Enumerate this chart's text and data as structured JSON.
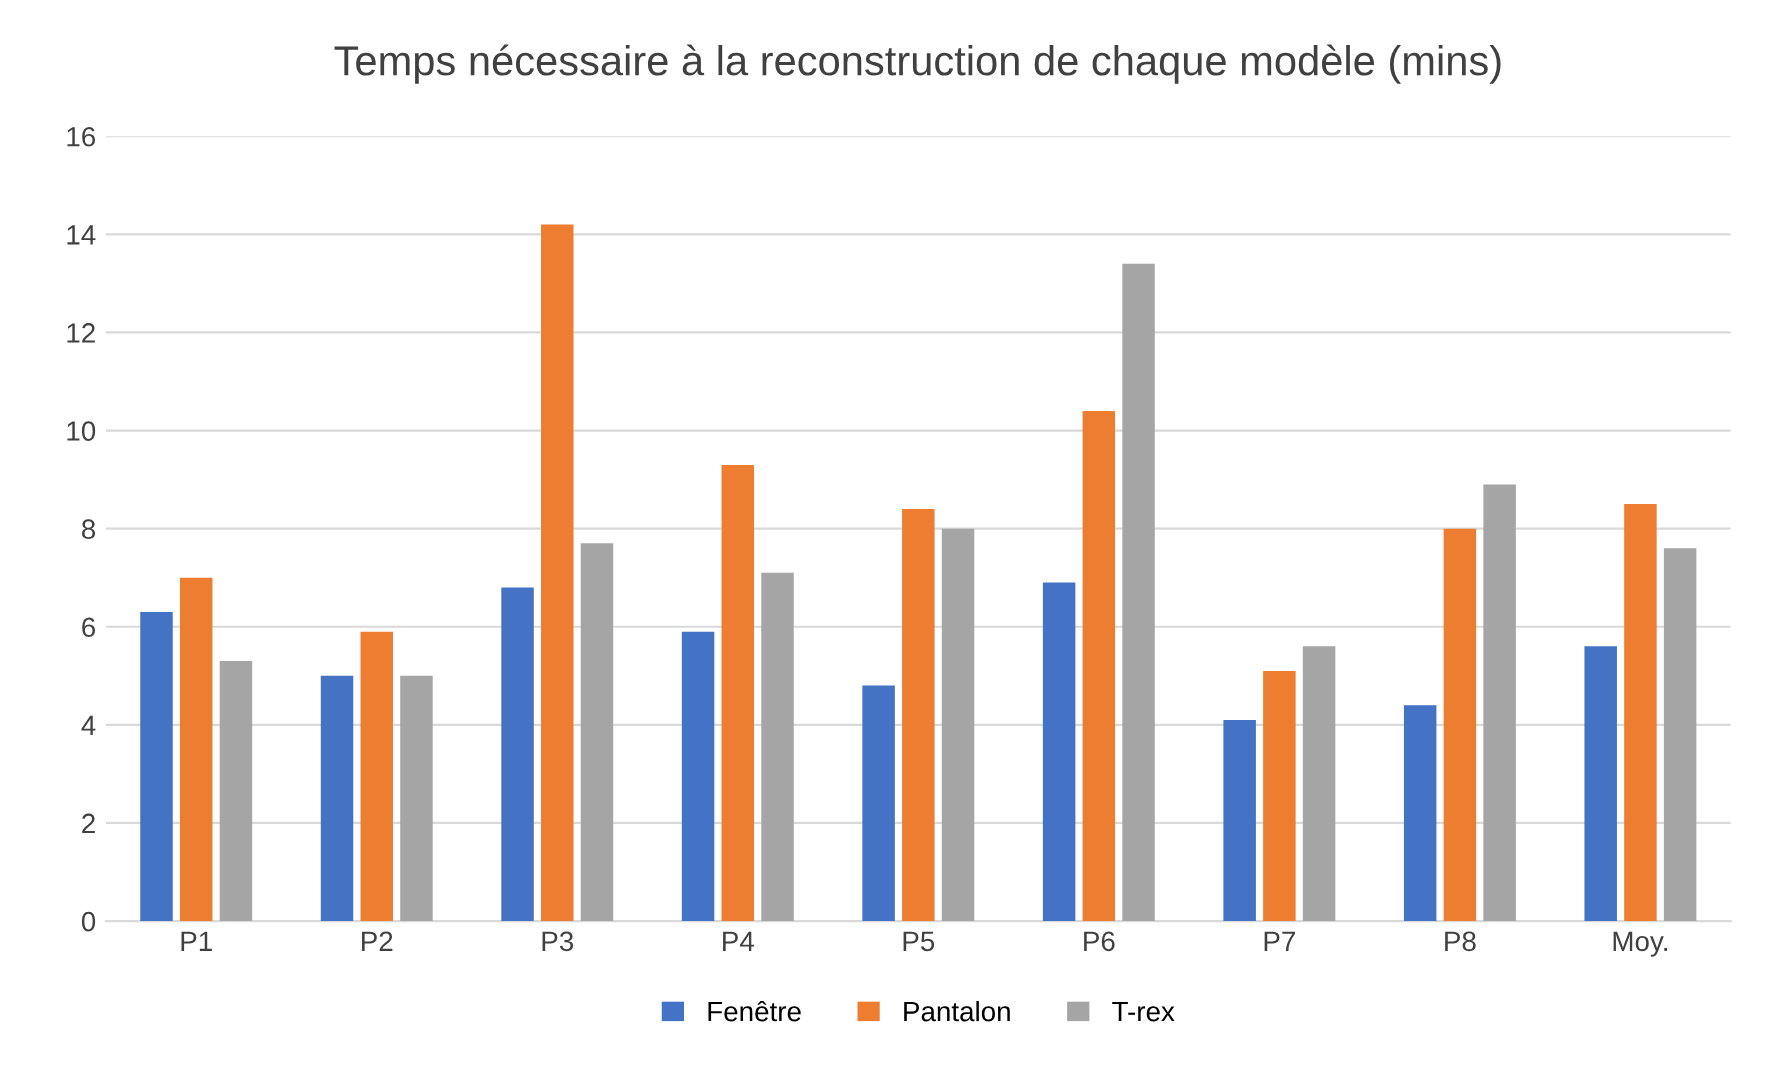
{
  "chart_data": {
    "type": "bar",
    "title": "Temps nécessaire à la reconstruction de chaque modèle (mins)",
    "categories": [
      "P1",
      "P2",
      "P3",
      "P4",
      "P5",
      "P6",
      "P7",
      "P8",
      "Moy."
    ],
    "series": [
      {
        "name": "Fenêtre",
        "color": "#4472c4",
        "values": [
          6.3,
          5.0,
          6.8,
          5.9,
          4.8,
          6.9,
          4.1,
          4.4,
          5.6
        ]
      },
      {
        "name": "Pantalon",
        "color": "#ed7d31",
        "values": [
          7.0,
          5.9,
          14.2,
          9.3,
          8.4,
          10.4,
          5.1,
          8.0,
          8.5
        ]
      },
      {
        "name": "T-rex",
        "color": "#a5a5a5",
        "values": [
          5.3,
          5.0,
          7.7,
          7.1,
          8.0,
          13.4,
          5.6,
          8.9,
          7.6
        ]
      }
    ],
    "ylim": [
      0,
      16
    ],
    "yticks": [
      0,
      2,
      4,
      6,
      8,
      10,
      12,
      14,
      16
    ],
    "grid": "y",
    "legend": "bottom"
  }
}
